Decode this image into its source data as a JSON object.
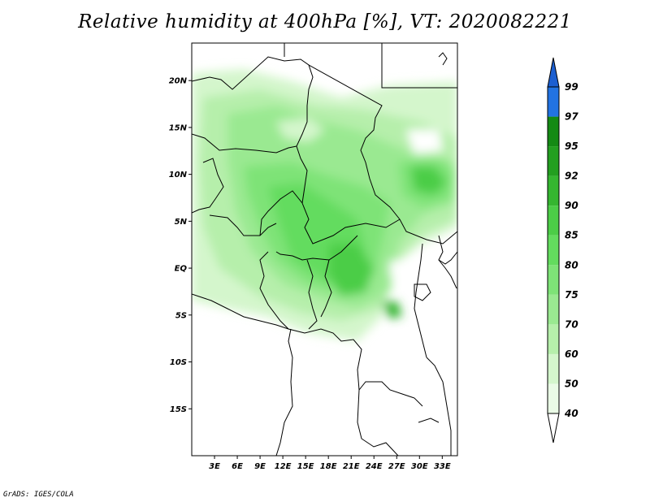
{
  "title": "Relative humidity at 400hPa [%], VT: 2020082221",
  "credit": "GrADS: IGES/COLA",
  "map": {
    "lat_labels": [
      {
        "label": "20N",
        "lat": 20
      },
      {
        "label": "15N",
        "lat": 15
      },
      {
        "label": "10N",
        "lat": 10
      },
      {
        "label": "5N",
        "lat": 5
      },
      {
        "label": "EQ",
        "lat": 0
      },
      {
        "label": "5S",
        "lat": -5
      },
      {
        "label": "10S",
        "lat": -10
      },
      {
        "label": "15S",
        "lat": -15
      }
    ],
    "lon_labels": [
      {
        "label": "3E",
        "lon": 3
      },
      {
        "label": "6E",
        "lon": 6
      },
      {
        "label": "9E",
        "lon": 9
      },
      {
        "label": "12E",
        "lon": 12
      },
      {
        "label": "15E",
        "lon": 15
      },
      {
        "label": "18E",
        "lon": 18
      },
      {
        "label": "21E",
        "lon": 21
      },
      {
        "label": "24E",
        "lon": 24
      },
      {
        "label": "27E",
        "lon": 27
      },
      {
        "label": "30E",
        "lon": 30
      },
      {
        "label": "33E",
        "lon": 33
      }
    ],
    "lon_range": [
      0,
      35
    ],
    "lat_range": [
      -20,
      24
    ]
  },
  "colorbar": {
    "levels": [
      {
        "label": "40",
        "color": "#eafbe6"
      },
      {
        "label": "50",
        "color": "#d4f6cc"
      },
      {
        "label": "60",
        "color": "#b6efab"
      },
      {
        "label": "70",
        "color": "#9ae991"
      },
      {
        "label": "75",
        "color": "#7ee377"
      },
      {
        "label": "80",
        "color": "#63dc5e"
      },
      {
        "label": "85",
        "color": "#4ccd47"
      },
      {
        "label": "90",
        "color": "#35b630"
      },
      {
        "label": "92",
        "color": "#239f20"
      },
      {
        "label": "95",
        "color": "#148a14"
      },
      {
        "label": "97",
        "color": "#3d93ea"
      },
      {
        "label": "99",
        "color": "#2273e2"
      }
    ],
    "top_color": "#1c5fd1"
  }
}
